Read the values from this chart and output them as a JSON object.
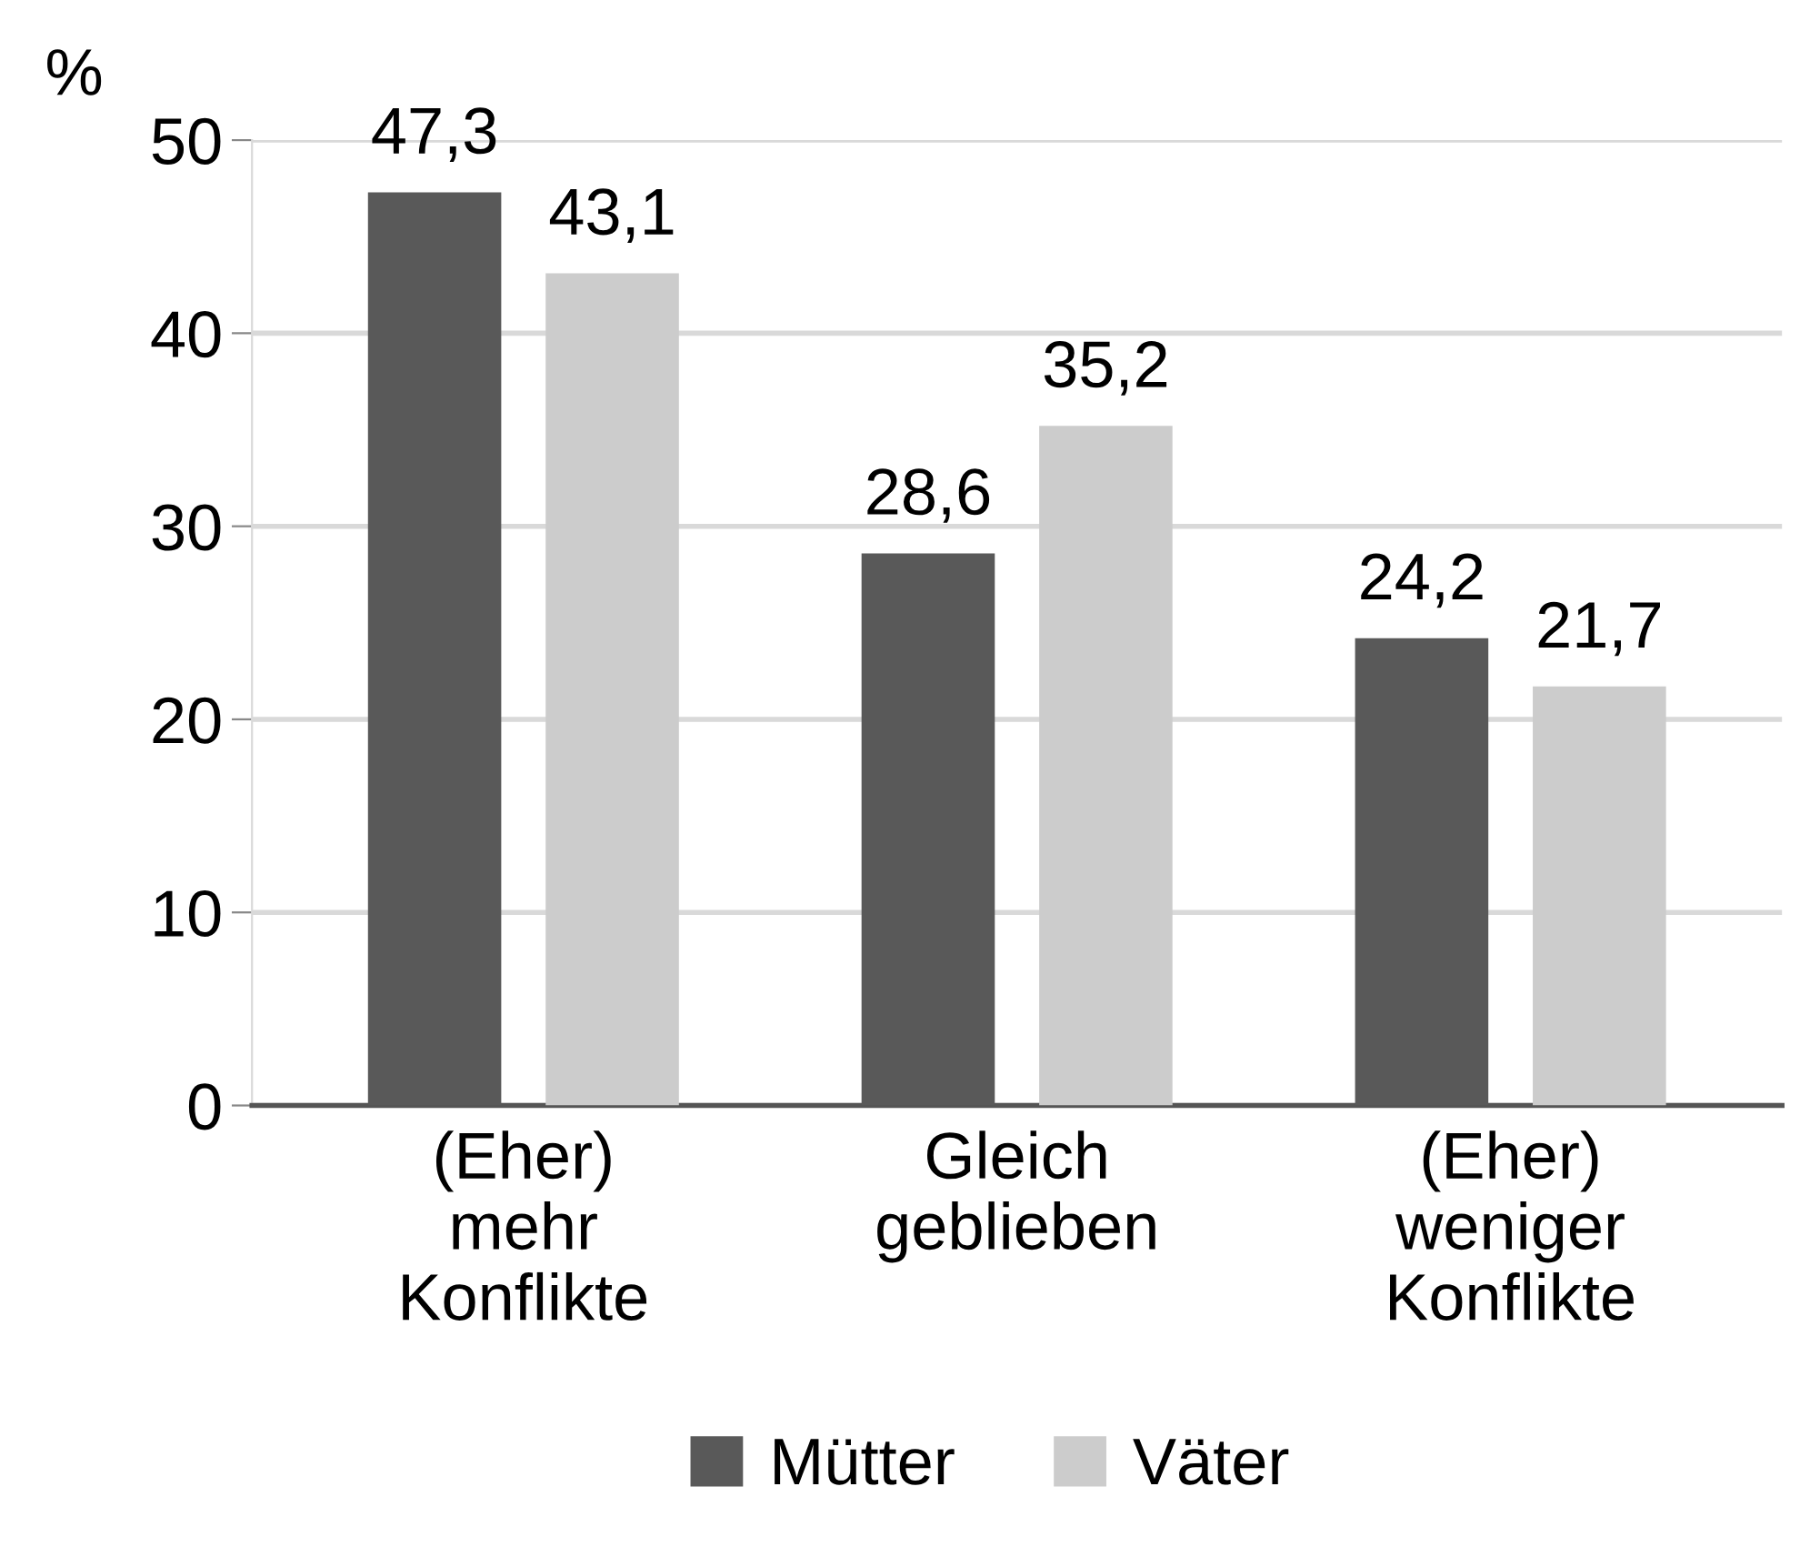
{
  "chart_data": {
    "type": "bar",
    "ylabel": "%",
    "categories": [
      "(Eher)\nmehr\nKonflikte",
      "Gleich\ngeblieben",
      "(Eher)\nweniger\nKonflikte"
    ],
    "series": [
      {
        "name": "Mütter",
        "color": "#595959",
        "values": [
          47.3,
          28.6,
          24.2
        ]
      },
      {
        "name": "Väter",
        "color": "#cccccc",
        "values": [
          43.1,
          35.2,
          21.7
        ]
      }
    ],
    "value_labels": [
      [
        "47,3",
        "28,6",
        "24,2"
      ],
      [
        "43,1",
        "35,2",
        "21,7"
      ]
    ],
    "ylim": [
      0,
      50
    ],
    "yticks": [
      0,
      10,
      20,
      30,
      40,
      50
    ],
    "grid": "y",
    "legend": "bottom"
  }
}
